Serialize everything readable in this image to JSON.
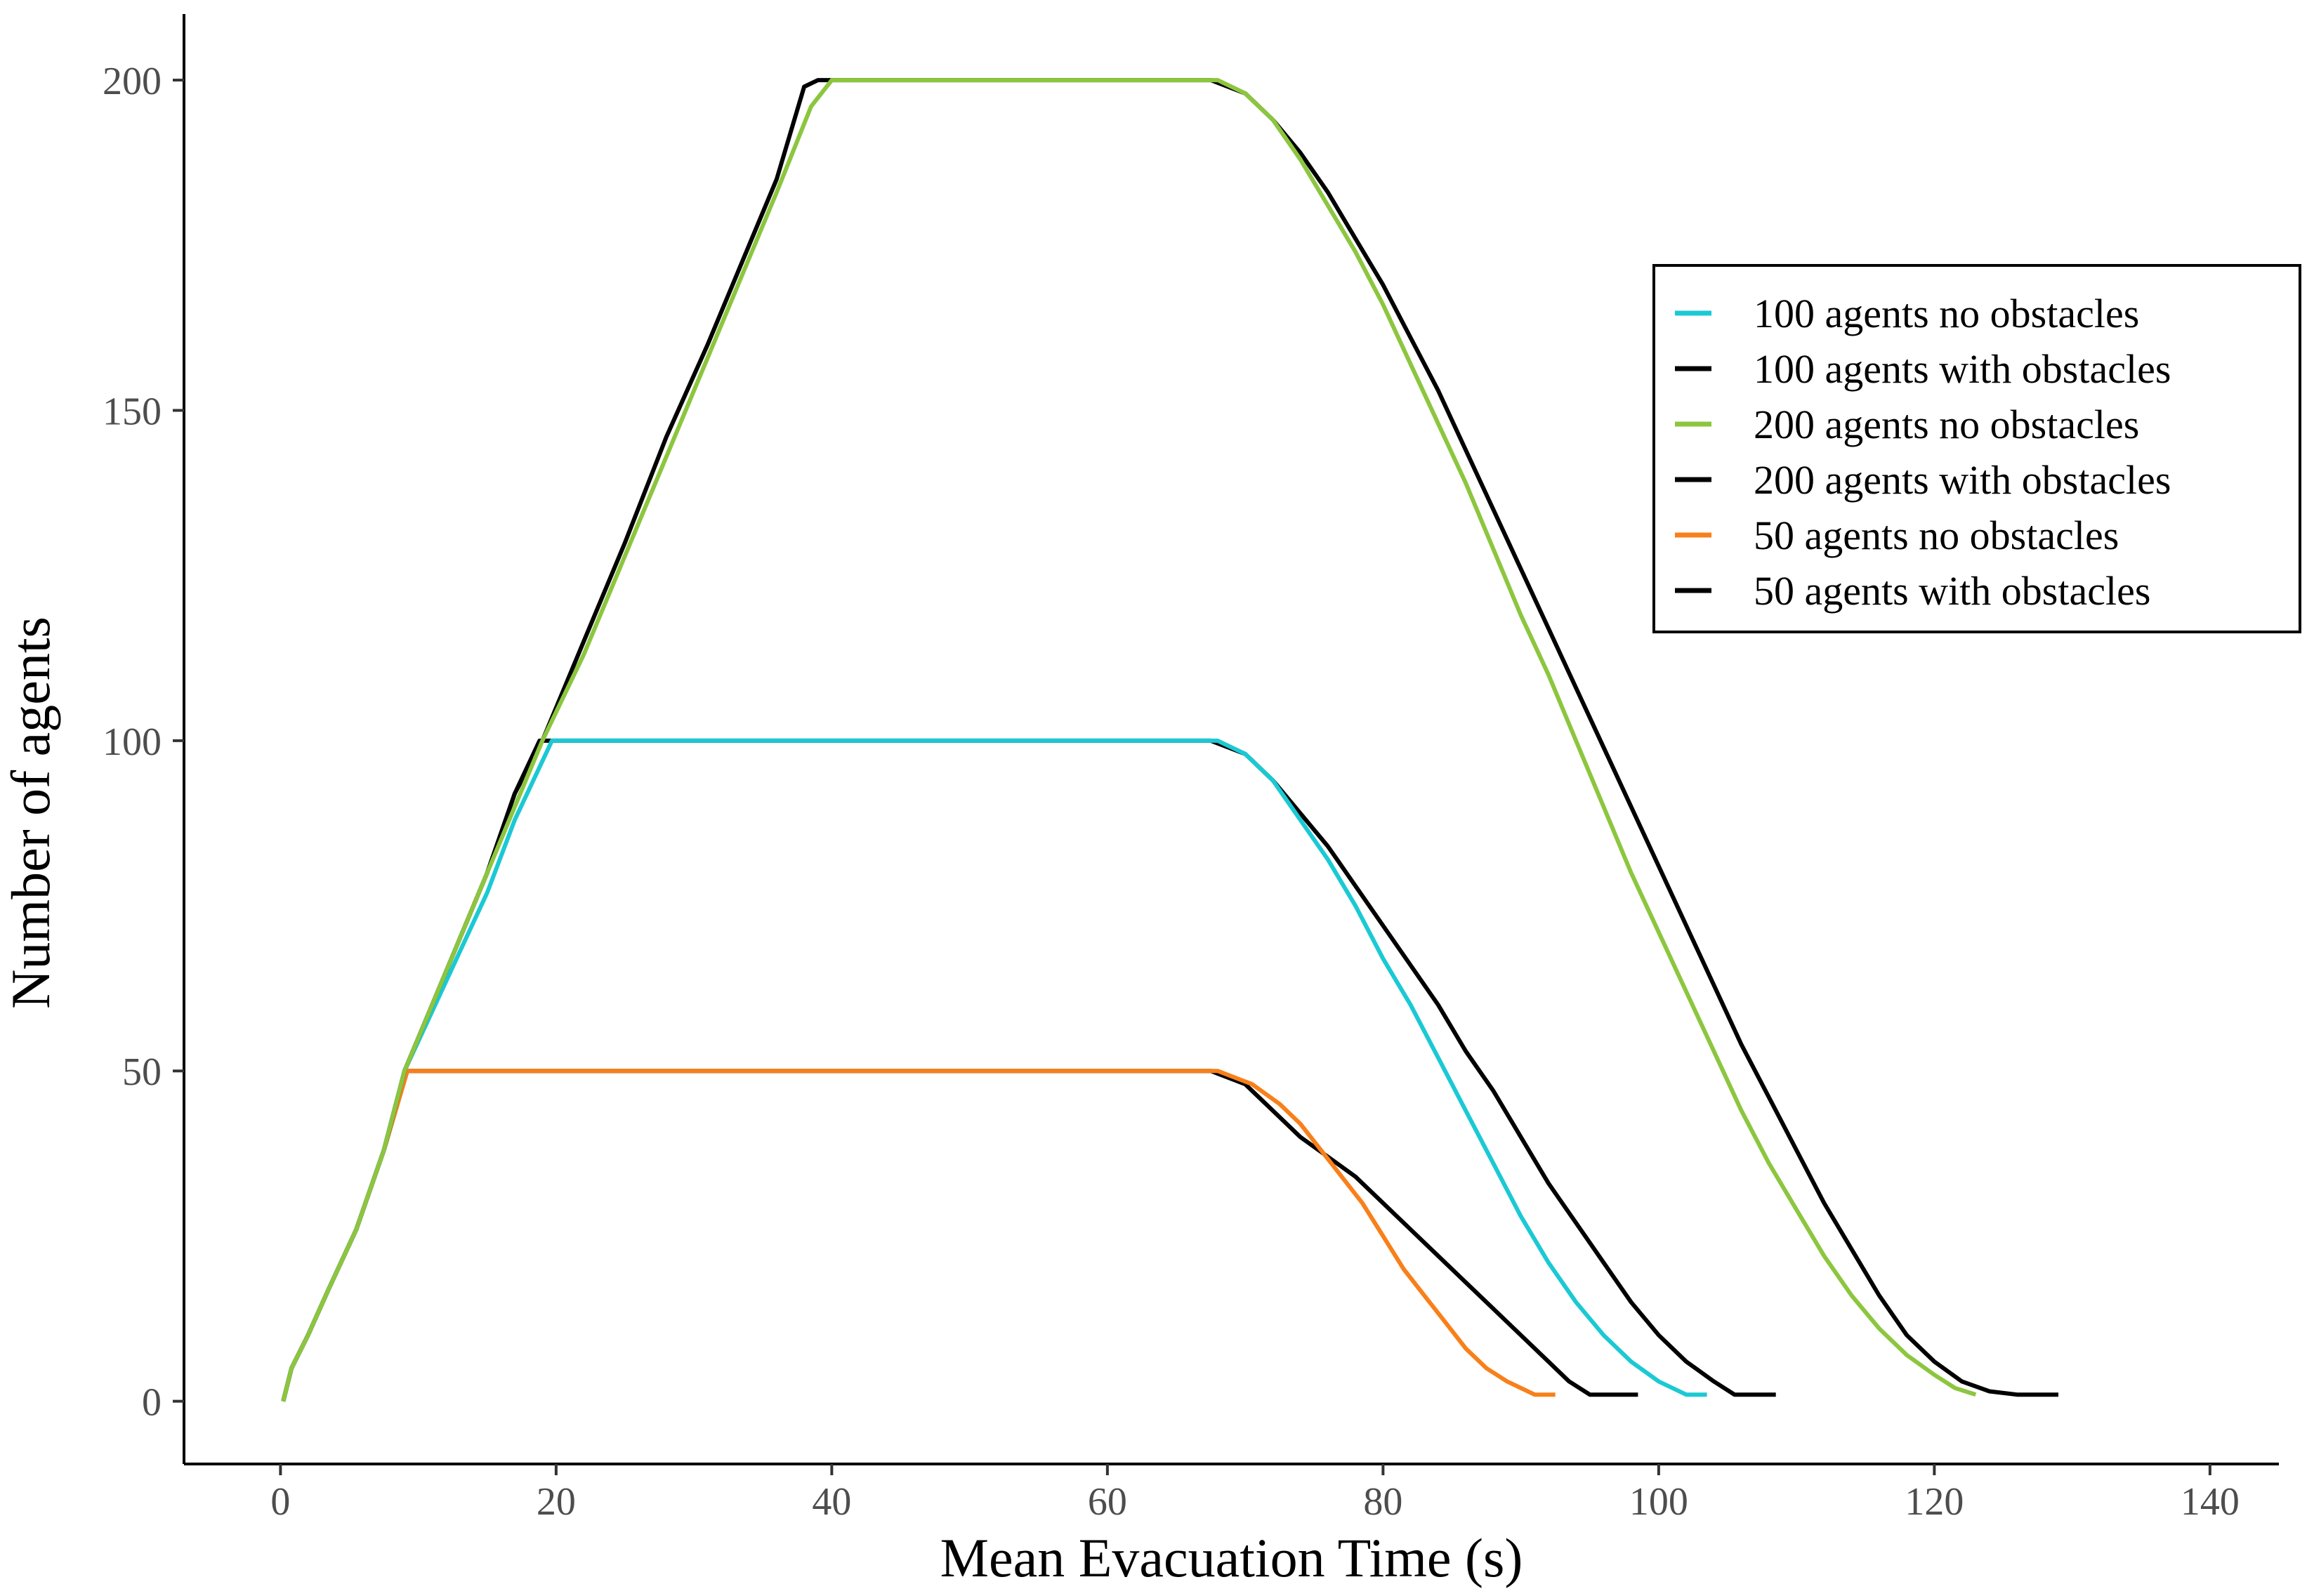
{
  "chart_data": {
    "type": "line",
    "title": "",
    "xlabel": "Mean Evacuation Time (s)",
    "ylabel": "Number of agents",
    "xlim": [
      -7,
      145
    ],
    "ylim": [
      -9.5,
      210
    ],
    "xticks": [
      0,
      20,
      40,
      60,
      80,
      100,
      120,
      140
    ],
    "yticks": [
      0,
      50,
      100,
      150,
      200
    ],
    "xtick_labels": [
      "0",
      "20",
      "40",
      "60",
      "80",
      "100",
      "120",
      "140"
    ],
    "ytick_labels": [
      "0",
      "50",
      "100",
      "150",
      "200"
    ],
    "grid": false,
    "legend_position": "top-right",
    "series": [
      {
        "name": "50 agents with obstacles",
        "color": "#000000",
        "points": [
          [
            0.2,
            0
          ],
          [
            0.8,
            5
          ],
          [
            2,
            10
          ],
          [
            3.5,
            17
          ],
          [
            5.5,
            26
          ],
          [
            7.5,
            38
          ],
          [
            9.2,
            50
          ],
          [
            67.5,
            50
          ],
          [
            70,
            48
          ],
          [
            72,
            44
          ],
          [
            74,
            40
          ],
          [
            76,
            37
          ],
          [
            78,
            34
          ],
          [
            80,
            30
          ],
          [
            82,
            26
          ],
          [
            84,
            22
          ],
          [
            86,
            18
          ],
          [
            88,
            14
          ],
          [
            90,
            10
          ],
          [
            92,
            6
          ],
          [
            93.5,
            3
          ],
          [
            95,
            1
          ],
          [
            98.5,
            1
          ]
        ]
      },
      {
        "name": "50 agents no obstacles",
        "color": "#f8801a",
        "points": [
          [
            0.2,
            0
          ],
          [
            0.8,
            5
          ],
          [
            2,
            10
          ],
          [
            3.5,
            17
          ],
          [
            5.5,
            26
          ],
          [
            7.5,
            38
          ],
          [
            9.2,
            50
          ],
          [
            68,
            50
          ],
          [
            70.5,
            48
          ],
          [
            72.5,
            45
          ],
          [
            74,
            42
          ],
          [
            75.5,
            38
          ],
          [
            77,
            34
          ],
          [
            78.5,
            30
          ],
          [
            80,
            25
          ],
          [
            81.5,
            20
          ],
          [
            83,
            16
          ],
          [
            84.5,
            12
          ],
          [
            86,
            8
          ],
          [
            87.5,
            5
          ],
          [
            89,
            3
          ],
          [
            91,
            1
          ],
          [
            92.5,
            1
          ]
        ]
      },
      {
        "name": "100 agents with obstacles",
        "color": "#000000",
        "points": [
          [
            0.2,
            0
          ],
          [
            0.8,
            5
          ],
          [
            2,
            10
          ],
          [
            3.5,
            17
          ],
          [
            5.5,
            26
          ],
          [
            7.5,
            38
          ],
          [
            9,
            50
          ],
          [
            11,
            60
          ],
          [
            13,
            70
          ],
          [
            15,
            80
          ],
          [
            17,
            92
          ],
          [
            18.8,
            100
          ],
          [
            67.5,
            100
          ],
          [
            70,
            98
          ],
          [
            72,
            94
          ],
          [
            74,
            89
          ],
          [
            76,
            84
          ],
          [
            78,
            78
          ],
          [
            80,
            72
          ],
          [
            82,
            66
          ],
          [
            84,
            60
          ],
          [
            86,
            53
          ],
          [
            88,
            47
          ],
          [
            90,
            40
          ],
          [
            92,
            33
          ],
          [
            94,
            27
          ],
          [
            96,
            21
          ],
          [
            98,
            15
          ],
          [
            100,
            10
          ],
          [
            102,
            6
          ],
          [
            104,
            3
          ],
          [
            105.5,
            1
          ],
          [
            108.5,
            1
          ]
        ]
      },
      {
        "name": "100 agents no obstacles",
        "color": "#1bc9d4",
        "points": [
          [
            0.2,
            0
          ],
          [
            0.8,
            5
          ],
          [
            2,
            10
          ],
          [
            3.5,
            17
          ],
          [
            5.5,
            26
          ],
          [
            7.5,
            38
          ],
          [
            9,
            50
          ],
          [
            11,
            59
          ],
          [
            13,
            68
          ],
          [
            15,
            77
          ],
          [
            17,
            88
          ],
          [
            19.7,
            100
          ],
          [
            68,
            100
          ],
          [
            70,
            98
          ],
          [
            72,
            94
          ],
          [
            74,
            88
          ],
          [
            76,
            82
          ],
          [
            78,
            75
          ],
          [
            80,
            67
          ],
          [
            82,
            60
          ],
          [
            84,
            52
          ],
          [
            86,
            44
          ],
          [
            88,
            36
          ],
          [
            90,
            28
          ],
          [
            92,
            21
          ],
          [
            94,
            15
          ],
          [
            96,
            10
          ],
          [
            98,
            6
          ],
          [
            100,
            3
          ],
          [
            102,
            1
          ],
          [
            103.5,
            1
          ]
        ]
      },
      {
        "name": "200 agents with obstacles",
        "color": "#000000",
        "points": [
          [
            0.2,
            0
          ],
          [
            0.8,
            5
          ],
          [
            2,
            10
          ],
          [
            3.5,
            17
          ],
          [
            5.5,
            26
          ],
          [
            7.5,
            38
          ],
          [
            9,
            50
          ],
          [
            11,
            60
          ],
          [
            13,
            70
          ],
          [
            15,
            80
          ],
          [
            17,
            92
          ],
          [
            19,
            100
          ],
          [
            22,
            115
          ],
          [
            25,
            130
          ],
          [
            28,
            146
          ],
          [
            31,
            160
          ],
          [
            34,
            175
          ],
          [
            36,
            185
          ],
          [
            38,
            199
          ],
          [
            39,
            200
          ],
          [
            67.5,
            200
          ],
          [
            70,
            198
          ],
          [
            72,
            194
          ],
          [
            74,
            189
          ],
          [
            76,
            183
          ],
          [
            78,
            176
          ],
          [
            80,
            169
          ],
          [
            82,
            161
          ],
          [
            84,
            153
          ],
          [
            86,
            144
          ],
          [
            88,
            135
          ],
          [
            90,
            126
          ],
          [
            92,
            117
          ],
          [
            94,
            108
          ],
          [
            96,
            99
          ],
          [
            98,
            90
          ],
          [
            100,
            81
          ],
          [
            102,
            72
          ],
          [
            104,
            63
          ],
          [
            106,
            54
          ],
          [
            108,
            46
          ],
          [
            110,
            38
          ],
          [
            112,
            30
          ],
          [
            114,
            23
          ],
          [
            116,
            16
          ],
          [
            118,
            10
          ],
          [
            120,
            6
          ],
          [
            122,
            3
          ],
          [
            124,
            1.5
          ],
          [
            126,
            1
          ],
          [
            129,
            1
          ]
        ]
      },
      {
        "name": "200 agents no obstacles",
        "color": "#8cc63f",
        "points": [
          [
            0.2,
            0
          ],
          [
            0.8,
            5
          ],
          [
            2,
            10
          ],
          [
            3.5,
            17
          ],
          [
            5.5,
            26
          ],
          [
            7.5,
            38
          ],
          [
            9,
            50
          ],
          [
            11,
            60
          ],
          [
            13,
            70
          ],
          [
            15,
            80
          ],
          [
            17,
            90
          ],
          [
            19,
            100
          ],
          [
            22,
            113
          ],
          [
            25,
            128
          ],
          [
            28,
            143
          ],
          [
            31,
            158
          ],
          [
            34,
            173
          ],
          [
            36,
            183
          ],
          [
            38.5,
            196
          ],
          [
            40,
            200
          ],
          [
            68,
            200
          ],
          [
            70,
            198
          ],
          [
            72,
            194
          ],
          [
            74,
            188
          ],
          [
            76,
            181
          ],
          [
            78,
            174
          ],
          [
            80,
            166
          ],
          [
            82,
            157
          ],
          [
            84,
            148
          ],
          [
            86,
            139
          ],
          [
            88,
            129
          ],
          [
            90,
            119
          ],
          [
            92,
            110
          ],
          [
            94,
            100
          ],
          [
            96,
            90
          ],
          [
            98,
            80
          ],
          [
            100,
            71
          ],
          [
            102,
            62
          ],
          [
            104,
            53
          ],
          [
            106,
            44
          ],
          [
            108,
            36
          ],
          [
            110,
            29
          ],
          [
            112,
            22
          ],
          [
            114,
            16
          ],
          [
            116,
            11
          ],
          [
            118,
            7
          ],
          [
            120,
            4
          ],
          [
            121.5,
            2
          ],
          [
            123,
            1
          ]
        ]
      }
    ],
    "legend": [
      {
        "label": "100 agents no obstacles",
        "color": "#1bc9d4"
      },
      {
        "label": "100 agents with obstacles",
        "color": "#000000"
      },
      {
        "label": "200 agents no obstacles",
        "color": "#8cc63f"
      },
      {
        "label": "200 agents with obstacles",
        "color": "#000000"
      },
      {
        "label": "50 agents no obstacles",
        "color": "#f8801a"
      },
      {
        "label": "50 agents with obstacles",
        "color": "#000000"
      }
    ]
  }
}
